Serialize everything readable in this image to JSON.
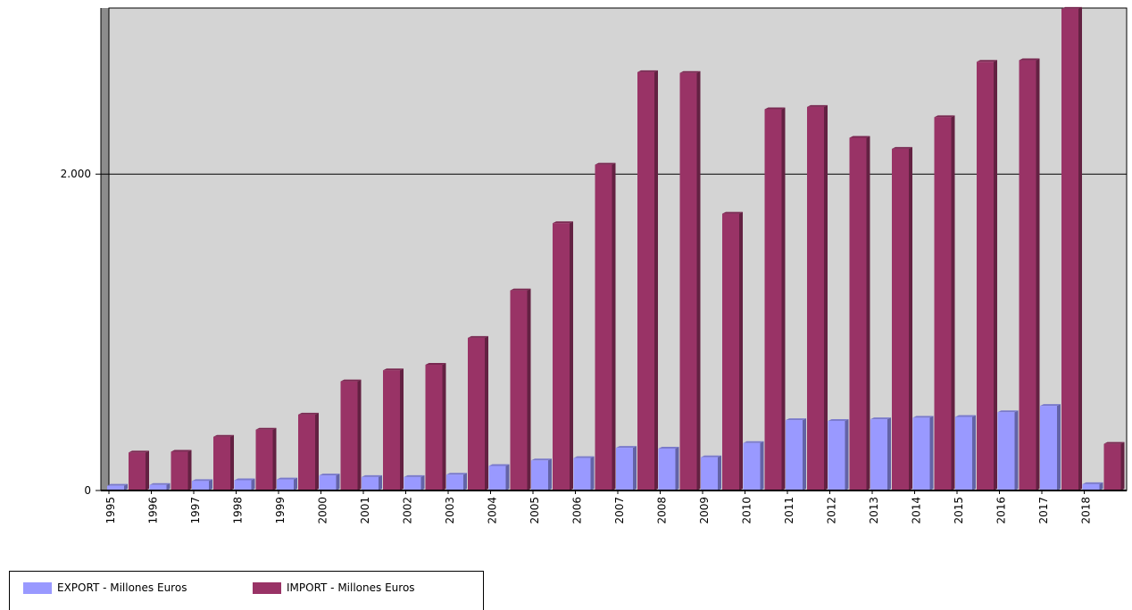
{
  "chart_data": {
    "type": "bar",
    "categories": [
      "1995",
      "1996",
      "1997",
      "1998",
      "1999",
      "2000",
      "2001",
      "2002",
      "2003",
      "2004",
      "2005",
      "2006",
      "2007",
      "2008",
      "2009",
      "2010",
      "2011",
      "2012",
      "2013",
      "2014",
      "2015",
      "2016",
      "2017",
      "2018"
    ],
    "series": [
      {
        "name": "EXPORT - Millones Euros",
        "color": "#9999ff",
        "values": [
          30,
          35,
          60,
          65,
          70,
          95,
          85,
          85,
          100,
          155,
          190,
          205,
          270,
          265,
          210,
          300,
          445,
          440,
          450,
          460,
          465,
          495,
          535,
          40
        ]
      },
      {
        "name": "IMPORT - Millones Euros",
        "color": "#993366",
        "values": [
          240,
          245,
          340,
          385,
          480,
          690,
          760,
          795,
          965,
          1265,
          1690,
          2060,
          2645,
          2640,
          1750,
          2410,
          2425,
          2230,
          2160,
          2360,
          2710,
          2720,
          3045,
          295
        ]
      }
    ],
    "y_ticks": [
      "0",
      "2.000"
    ],
    "ylim": [
      0,
      3050
    ],
    "grid": true,
    "legend_position": "bottom-left",
    "plot_background": "#d4d4d4"
  }
}
